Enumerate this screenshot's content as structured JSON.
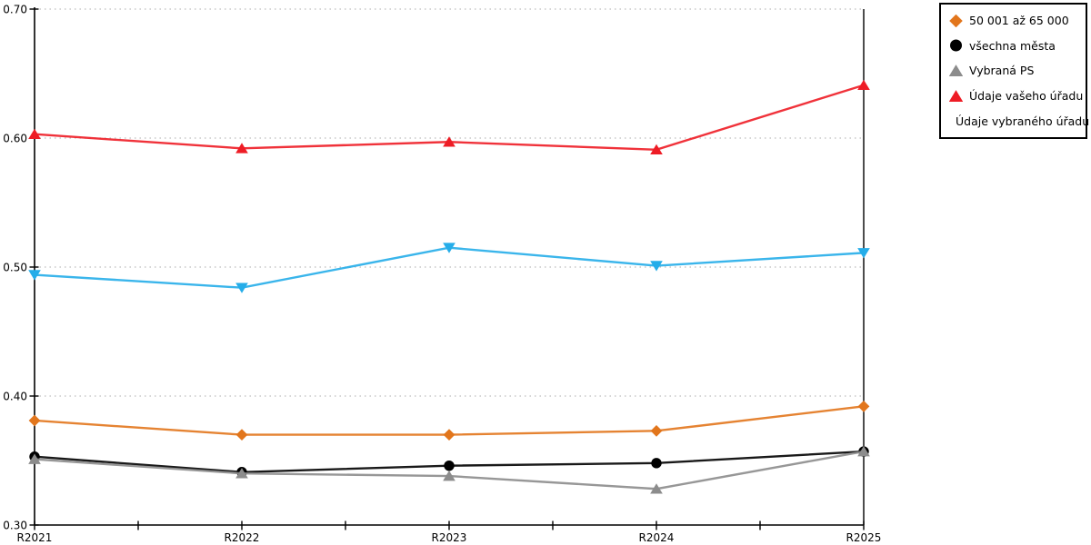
{
  "chart_data": {
    "type": "line",
    "title": "",
    "xlabel": "",
    "ylabel": "",
    "categories": [
      "R2021",
      "R2022",
      "R2023",
      "R2024",
      "R2025"
    ],
    "series": [
      {
        "name": "50 001 až 65 000",
        "marker": "diamond",
        "color": "#E2761C",
        "values": [
          0.381,
          0.37,
          0.37,
          0.373,
          0.392
        ]
      },
      {
        "name": "všechna města",
        "marker": "circle",
        "color": "#000000",
        "values": [
          0.353,
          0.341,
          0.346,
          0.348,
          0.357
        ]
      },
      {
        "name": "Vybraná PS",
        "marker": "triangle-up",
        "color": "#8C8C8C",
        "values": [
          0.351,
          0.34,
          0.338,
          0.328,
          0.357
        ]
      },
      {
        "name": "Údaje vašeho úřadu",
        "marker": "triangle-up",
        "color": "#EE1C25",
        "values": [
          0.603,
          0.592,
          0.597,
          0.591,
          0.641
        ]
      },
      {
        "name": "Údaje vybraného úřadu",
        "marker": "triangle-down",
        "color": "#25ADE9",
        "values": [
          0.494,
          0.484,
          0.515,
          0.501,
          0.511
        ]
      }
    ],
    "ylim": [
      0.3,
      0.7
    ],
    "ytick_step": 0.1,
    "ytick_labels": [
      "0.30",
      "0.40",
      "0.50",
      "0.60",
      "0.70"
    ],
    "grid": "horizontal-dotted",
    "legend_position": "outside-top-right"
  },
  "colors": {
    "background": "#FFFFFF",
    "axis": "#000000",
    "grid": "#BDBDBD",
    "legend_border": "#000000",
    "text": "#000000"
  }
}
